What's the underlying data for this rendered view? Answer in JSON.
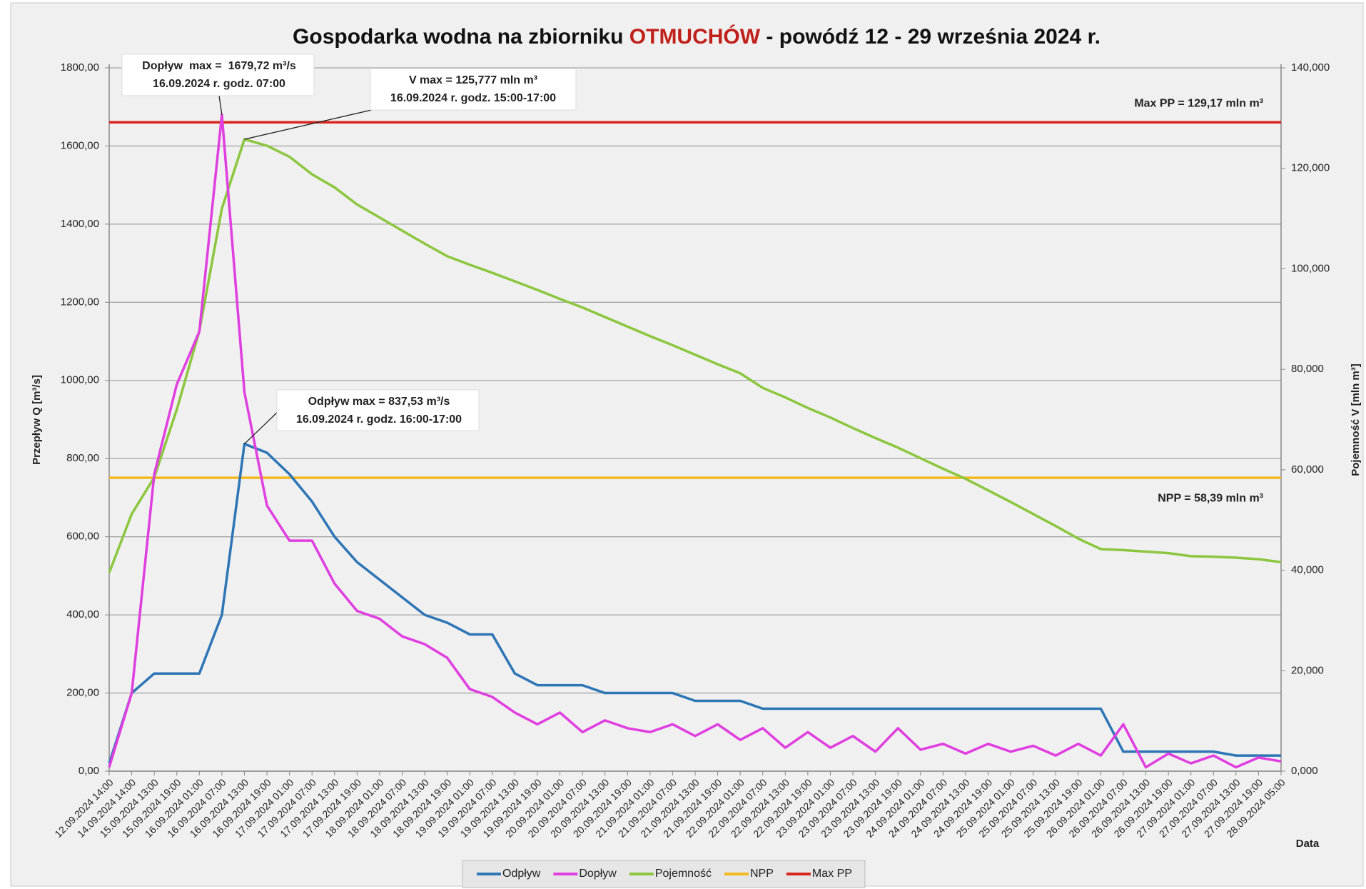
{
  "chart_data": {
    "type": "line",
    "title_parts": [
      "Gospodarka wodna na zbiorniku ",
      "OTMUCHÓW",
      " - powódź 12 - 29 września 2024 r."
    ],
    "title_colors": [
      "#111111",
      "#c0201a",
      "#111111"
    ],
    "ylabel": "Przepływ Q [m³/s]",
    "y2label": "Pojemność V [mln m³]",
    "xlabel": "Data",
    "categories": [
      "12.09.2024 14:00",
      "14.09.2024 14:00",
      "15.09.2024 13:00",
      "15.09.2024 19:00",
      "16.09.2024 01:00",
      "16.09.2024 07:00",
      "16.09.2024 13:00",
      "16.09.2024 19:00",
      "17.09.2024 01:00",
      "17.09.2024 07:00",
      "17.09.2024 13:00",
      "17.09.2024 19:00",
      "18.09.2024 01:00",
      "18.09.2024 07:00",
      "18.09.2024 13:00",
      "18.09.2024 19:00",
      "19.09.2024 01:00",
      "19.09.2024 07:00",
      "19.09.2024 13:00",
      "19.09.2024 19:00",
      "20.09.2024 01:00",
      "20.09.2024 07:00",
      "20.09.2024 13:00",
      "20.09.2024 19:00",
      "21.09.2024 01:00",
      "21.09.2024 07:00",
      "21.09.2024 13:00",
      "21.09.2024 19:00",
      "22.09.2024 01:00",
      "22.09.2024 07:00",
      "22.09.2024 13:00",
      "22.09.2024 19:00",
      "23.09.2024 01:00",
      "23.09.2024 07:00",
      "23.09.2024 13:00",
      "23.09.2024 19:00",
      "24.09.2024 01:00",
      "24.09.2024 07:00",
      "24.09.2024 13:00",
      "24.09.2024 19:00",
      "25.09.2024 01:00",
      "25.09.2024 07:00",
      "25.09.2024 13:00",
      "25.09.2024 19:00",
      "26.09.2024 01:00",
      "26.09.2024 07:00",
      "26.09.2024 13:00",
      "26.09.2024 19:00",
      "27.09.2024 01:00",
      "27.09.2024 07:00",
      "27.09.2024 13:00",
      "27.09.2024 19:00",
      "28.09.2024 05:00"
    ],
    "series": [
      {
        "name": "Odpływ",
        "color": "#2e75b6",
        "values": [
          20,
          200,
          250,
          250,
          250,
          400,
          837.53,
          815,
          760,
          690,
          600,
          535,
          490,
          445,
          400,
          380,
          350,
          350,
          250,
          220,
          220,
          220,
          200,
          200,
          200,
          200,
          180,
          180,
          180,
          160,
          160,
          160,
          160,
          160,
          160,
          160,
          160,
          160,
          160,
          160,
          160,
          160,
          160,
          160,
          160,
          50,
          50,
          50,
          50,
          50,
          40,
          40,
          40
        ]
      },
      {
        "name": "Dopływ",
        "color": "#e03ee0",
        "values": [
          10,
          200,
          760,
          990,
          1125,
          1679.72,
          970,
          680,
          590,
          590,
          480,
          410,
          390,
          345,
          325,
          290,
          210,
          190,
          150,
          120,
          150,
          100,
          130,
          110,
          100,
          120,
          90,
          120,
          80,
          110,
          60,
          100,
          60,
          90,
          50,
          110,
          55,
          70,
          45,
          70,
          50,
          65,
          40,
          70,
          40,
          120,
          10,
          45,
          20,
          40,
          10,
          35,
          25
        ]
      },
      {
        "name": "Pojemność",
        "color": "#8cc63f",
        "axis": "y2",
        "values": [
          39.5,
          51.2,
          58.5,
          72,
          87.6,
          112,
          125.777,
          124.5,
          122.3,
          118.8,
          116.2,
          112.8,
          110.2,
          107.6,
          105,
          102.5,
          100.8,
          99.2,
          97.5,
          95.8,
          94,
          92.3,
          90.4,
          88.5,
          86.6,
          84.8,
          82.9,
          81,
          79.2,
          76.3,
          74.4,
          72.3,
          70.4,
          68.3,
          66.3,
          64.4,
          62.3,
          60.2,
          58.2,
          55.9,
          53.6,
          51.2,
          48.8,
          46.3,
          44.2,
          44,
          43.7,
          43.4,
          42.8,
          42.7,
          42.5,
          42.2,
          41.6
        ]
      },
      {
        "name": "NPP",
        "color": "#f4b91f",
        "axis": "y2",
        "values": [
          58.39,
          58.39,
          58.39,
          58.39,
          58.39,
          58.39,
          58.39,
          58.39,
          58.39,
          58.39,
          58.39,
          58.39,
          58.39,
          58.39,
          58.39,
          58.39,
          58.39,
          58.39,
          58.39,
          58.39,
          58.39,
          58.39,
          58.39,
          58.39,
          58.39,
          58.39,
          58.39,
          58.39,
          58.39,
          58.39,
          58.39,
          58.39,
          58.39,
          58.39,
          58.39,
          58.39,
          58.39,
          58.39,
          58.39,
          58.39,
          58.39,
          58.39,
          58.39,
          58.39,
          58.39,
          58.39,
          58.39,
          58.39,
          58.39,
          58.39,
          58.39,
          58.39,
          58.39
        ]
      },
      {
        "name": "Max PP",
        "color": "#d9261c",
        "axis": "y2",
        "values": [
          129.17,
          129.17,
          129.17,
          129.17,
          129.17,
          129.17,
          129.17,
          129.17,
          129.17,
          129.17,
          129.17,
          129.17,
          129.17,
          129.17,
          129.17,
          129.17,
          129.17,
          129.17,
          129.17,
          129.17,
          129.17,
          129.17,
          129.17,
          129.17,
          129.17,
          129.17,
          129.17,
          129.17,
          129.17,
          129.17,
          129.17,
          129.17,
          129.17,
          129.17,
          129.17,
          129.17,
          129.17,
          129.17,
          129.17,
          129.17,
          129.17,
          129.17,
          129.17,
          129.17,
          129.17,
          129.17,
          129.17,
          129.17,
          129.17,
          129.17,
          129.17,
          129.17,
          129.17
        ]
      }
    ],
    "ylim": [
      0,
      1800
    ],
    "yticks": [
      {
        "value": 0,
        "label": "0,00"
      },
      {
        "value": 200,
        "label": "200,00"
      },
      {
        "value": 400,
        "label": "400,00"
      },
      {
        "value": 600,
        "label": "600,00"
      },
      {
        "value": 800,
        "label": "800,00"
      },
      {
        "value": 1000,
        "label": "1000,00"
      },
      {
        "value": 1200,
        "label": "1200,00"
      },
      {
        "value": 1400,
        "label": "1400,00"
      },
      {
        "value": 1600,
        "label": "1600,00"
      },
      {
        "value": 1800,
        "label": "1800,00"
      }
    ],
    "y2lim": [
      0,
      140
    ],
    "y2ticks": [
      {
        "value": 0,
        "label": "0,000"
      },
      {
        "value": 20,
        "label": "20,000"
      },
      {
        "value": 40,
        "label": "40,000"
      },
      {
        "value": 60,
        "label": "60,000"
      },
      {
        "value": 80,
        "label": "80,000"
      },
      {
        "value": 100,
        "label": "100,000"
      },
      {
        "value": 120,
        "label": "120,000"
      },
      {
        "value": 140,
        "label": "140,000"
      }
    ],
    "grid": true,
    "legend": "bottom",
    "annotations": [
      {
        "lines": [
          "Dopływ  max =  1679,72 m³/s",
          "16.09.2024 r. godz. 07:00"
        ],
        "color": "#e03ee0"
      },
      {
        "lines": [
          "V max = 125,777 mln m³",
          "16.09.2024 r. godz. 15:00-17:00"
        ],
        "color": "#76b030"
      },
      {
        "lines": [
          "Odpływ max = 837,53 m³/s",
          "16.09.2024 r. godz. 16:00-17:00"
        ],
        "color": "#2c6aa0"
      },
      {
        "lines": [
          "Max PP = 129,17 mln m³"
        ],
        "color": "#d9261c"
      },
      {
        "lines": [
          "NPP = 58,39 mln m³"
        ],
        "color": "#f0901a"
      }
    ]
  }
}
